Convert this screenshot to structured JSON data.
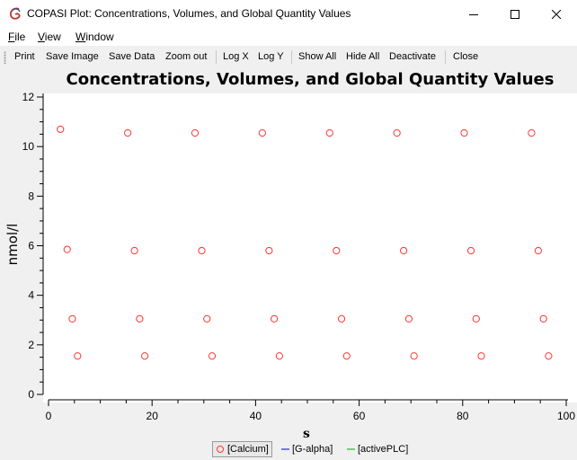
{
  "window": {
    "title": "COPASI Plot: Concentrations, Volumes, and Global Quantity Values"
  },
  "menu": [
    {
      "accel": "F",
      "rest": "ile"
    },
    {
      "accel": "V",
      "rest": "iew"
    },
    {
      "accel": "W",
      "rest": "indow"
    }
  ],
  "toolbar": {
    "print": "Print",
    "save_image": "Save Image",
    "save_data": "Save Data",
    "zoom_out": "Zoom out",
    "log_x": "Log X",
    "log_y": "Log Y",
    "show_all": "Show All",
    "hide_all": "Hide All",
    "deactivate": "Deactivate",
    "close": "Close"
  },
  "legend": [
    {
      "label": "[Calcium]",
      "color": "#ff3333",
      "marker": "circle"
    },
    {
      "label": "[G-alpha]",
      "color": "#0000cc",
      "marker": "line"
    },
    {
      "label": "[activePLC]",
      "color": "#00aa00",
      "marker": "line"
    }
  ],
  "chart_data": {
    "type": "scatter",
    "title": "Concentrations, Volumes, and Global Quantity Values",
    "xlabel": "s",
    "ylabel": "nmol/l",
    "xlim": [
      0,
      100
    ],
    "ylim": [
      0,
      12
    ],
    "xticks": [
      0,
      20,
      40,
      60,
      80,
      100
    ],
    "yticks": [
      0,
      2,
      4,
      6,
      8,
      10,
      12
    ],
    "grid": false,
    "legend_position": "bottom",
    "series": [
      {
        "name": "[Calcium]",
        "color": "#ff3333",
        "marker": "circle",
        "points": [
          {
            "x": 2.3,
            "y": 10.7
          },
          {
            "x": 15.3,
            "y": 10.55
          },
          {
            "x": 28.3,
            "y": 10.55
          },
          {
            "x": 41.3,
            "y": 10.55
          },
          {
            "x": 54.3,
            "y": 10.55
          },
          {
            "x": 67.3,
            "y": 10.55
          },
          {
            "x": 80.3,
            "y": 10.55
          },
          {
            "x": 93.3,
            "y": 10.55
          },
          {
            "x": 3.6,
            "y": 5.85
          },
          {
            "x": 16.6,
            "y": 5.8
          },
          {
            "x": 29.6,
            "y": 5.8
          },
          {
            "x": 42.6,
            "y": 5.8
          },
          {
            "x": 55.6,
            "y": 5.8
          },
          {
            "x": 68.6,
            "y": 5.8
          },
          {
            "x": 81.6,
            "y": 5.8
          },
          {
            "x": 94.6,
            "y": 5.8
          },
          {
            "x": 4.6,
            "y": 3.05
          },
          {
            "x": 17.6,
            "y": 3.05
          },
          {
            "x": 30.6,
            "y": 3.05
          },
          {
            "x": 43.6,
            "y": 3.05
          },
          {
            "x": 56.6,
            "y": 3.05
          },
          {
            "x": 69.6,
            "y": 3.05
          },
          {
            "x": 82.6,
            "y": 3.05
          },
          {
            "x": 95.6,
            "y": 3.05
          },
          {
            "x": 5.6,
            "y": 1.55
          },
          {
            "x": 18.6,
            "y": 1.55
          },
          {
            "x": 31.6,
            "y": 1.55
          },
          {
            "x": 44.6,
            "y": 1.55
          },
          {
            "x": 57.6,
            "y": 1.55
          },
          {
            "x": 70.6,
            "y": 1.55
          },
          {
            "x": 83.6,
            "y": 1.55
          },
          {
            "x": 96.6,
            "y": 1.55
          }
        ]
      },
      {
        "name": "[G-alpha]",
        "color": "#0000cc",
        "points": []
      },
      {
        "name": "[activePLC]",
        "color": "#00aa00",
        "points": []
      }
    ]
  }
}
